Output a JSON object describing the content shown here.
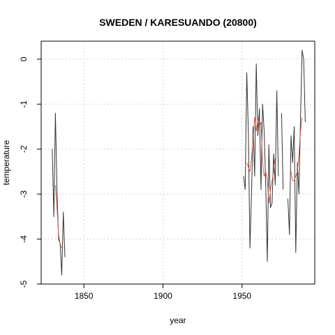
{
  "chart_data": {
    "type": "line",
    "title": "SWEDEN / KARESUANDO (20800)",
    "xlabel": "year",
    "ylabel": "temperature",
    "xlim": [
      1823,
      1996
    ],
    "ylim": [
      -5,
      0.4
    ],
    "x_ticks": [
      "1850",
      "1900",
      "1950"
    ],
    "y_ticks": [
      "0",
      "-1",
      "-2",
      "-3",
      "-4",
      "-5"
    ],
    "grid": true,
    "series": [
      {
        "color": "#333333",
        "segments": [
          [
            [
              1830,
              -2.0
            ],
            [
              1831,
              -3.5
            ],
            [
              1832,
              -1.2
            ],
            [
              1833,
              -2.9
            ],
            [
              1834,
              -4.0
            ],
            [
              1835,
              -4.1
            ],
            [
              1836,
              -4.8
            ],
            [
              1837,
              -3.4
            ],
            [
              1838,
              -4.4
            ]
          ],
          [
            [
              1951,
              -2.6
            ],
            [
              1952,
              -2.9
            ],
            [
              1953,
              -0.3
            ],
            [
              1954,
              -1.6
            ],
            [
              1955,
              -4.2
            ],
            [
              1956,
              -3.0
            ],
            [
              1957,
              -1.5
            ],
            [
              1958,
              -2.6
            ],
            [
              1959,
              -0.1
            ],
            [
              1960,
              -1.7
            ],
            [
              1961,
              -1.1
            ],
            [
              1962,
              -2.9
            ],
            [
              1963,
              -1.0
            ],
            [
              1964,
              -1.6
            ],
            [
              1965,
              -2.8
            ],
            [
              1966,
              -4.5
            ],
            [
              1967,
              -1.9
            ],
            [
              1968,
              -3.3
            ],
            [
              1969,
              -3.2
            ],
            [
              1970,
              -2.1
            ],
            [
              1971,
              -2.8
            ],
            [
              1972,
              -0.7
            ],
            [
              1973,
              -2.6
            ]
          ],
          [
            [
              1975,
              -1.2
            ],
            [
              1976,
              -2.9
            ]
          ],
          [
            [
              1979,
              -3.1
            ],
            [
              1980,
              -3.9
            ],
            [
              1981,
              -1.7
            ],
            [
              1982,
              -2.3
            ],
            [
              1983,
              -1.5
            ],
            [
              1984,
              -4.3
            ],
            [
              1985,
              -2.3
            ],
            [
              1986,
              -3.0
            ],
            [
              1987,
              -1.3
            ],
            [
              1988,
              0.2
            ],
            [
              1989,
              0.0
            ],
            [
              1990,
              -1.4
            ]
          ]
        ]
      },
      {
        "color": "#d05a4b",
        "segments": [
          [
            [
              1832,
              -2.8
            ],
            [
              1833,
              -3.3
            ],
            [
              1834,
              -3.9
            ],
            [
              1835,
              -4.1
            ],
            [
              1836,
              -4.2
            ]
          ],
          [
            [
              1953,
              -2.3
            ],
            [
              1954,
              -2.4
            ],
            [
              1955,
              -2.5
            ],
            [
              1956,
              -2.2
            ],
            [
              1957,
              -1.8
            ],
            [
              1958,
              -1.3
            ],
            [
              1959,
              -1.6
            ],
            [
              1960,
              -1.3
            ],
            [
              1961,
              -1.5
            ],
            [
              1962,
              -1.4
            ],
            [
              1963,
              -2.3
            ],
            [
              1964,
              -2.6
            ],
            [
              1965,
              -2.5
            ],
            [
              1966,
              -2.7
            ],
            [
              1967,
              -3.2
            ],
            [
              1968,
              -2.9
            ],
            [
              1969,
              -2.7
            ],
            [
              1970,
              -2.5
            ],
            [
              1971,
              -2.2
            ]
          ],
          [
            [
              1981,
              -2.5
            ],
            [
              1982,
              -2.7
            ],
            [
              1983,
              -2.7
            ],
            [
              1984,
              -2.6
            ],
            [
              1985,
              -2.5
            ],
            [
              1986,
              -2.1
            ],
            [
              1987,
              -1.6
            ],
            [
              1988,
              -1.3
            ]
          ]
        ]
      }
    ]
  }
}
